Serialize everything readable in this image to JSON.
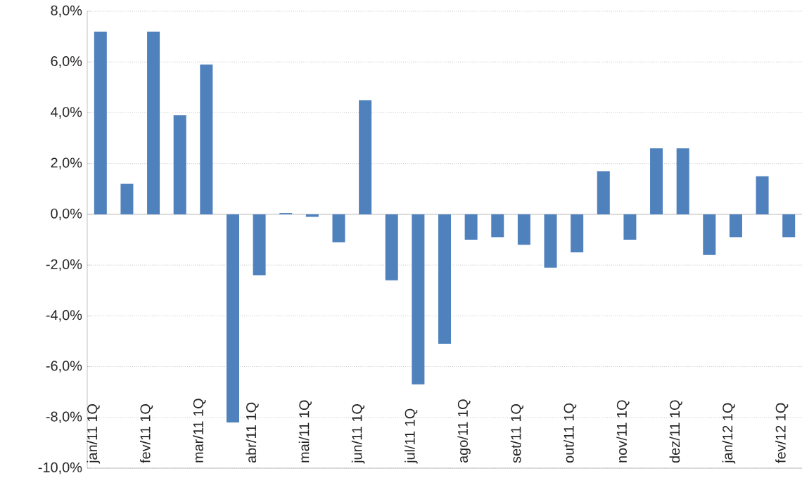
{
  "chart_data": {
    "type": "bar",
    "categories": [
      "jan/11 1Q",
      null,
      "fev/11 1Q",
      null,
      "mar/11 1Q",
      null,
      "abr/11 1Q",
      null,
      "mai/11 1Q",
      null,
      "jun/11 1Q",
      null,
      "jul/11 1Q",
      null,
      "ago/11 1Q",
      null,
      "set/11 1Q",
      null,
      "out/11 1Q",
      null,
      "nov/11 1Q",
      null,
      "dez/11 1Q",
      null,
      "jan/12 1Q",
      null,
      "fev/12 1Q"
    ],
    "values": [
      7.2,
      1.2,
      7.2,
      3.9,
      5.9,
      -8.2,
      -2.4,
      0.05,
      -0.1,
      -1.1,
      4.5,
      -2.6,
      -6.7,
      -5.1,
      -1.0,
      -0.9,
      -1.2,
      -2.1,
      -1.5,
      1.7,
      -1.0,
      2.6,
      2.6,
      -1.6,
      -0.9,
      1.5,
      -0.9
    ],
    "color": "#4f81bd",
    "ylim": [
      -10,
      8
    ],
    "yticks": [
      {
        "value": -10,
        "label": "-10,0%"
      },
      {
        "value": -8,
        "label": "-8,0%"
      },
      {
        "value": -6,
        "label": "-6,0%"
      },
      {
        "value": -4,
        "label": "-4,0%"
      },
      {
        "value": -2,
        "label": "-2,0%"
      },
      {
        "value": 0,
        "label": "0,0%"
      },
      {
        "value": 2,
        "label": "2,0%"
      },
      {
        "value": 4,
        "label": "4,0%"
      },
      {
        "value": 6,
        "label": "6,0%"
      },
      {
        "value": 8,
        "label": "8,0%"
      }
    ],
    "grid": "y"
  }
}
